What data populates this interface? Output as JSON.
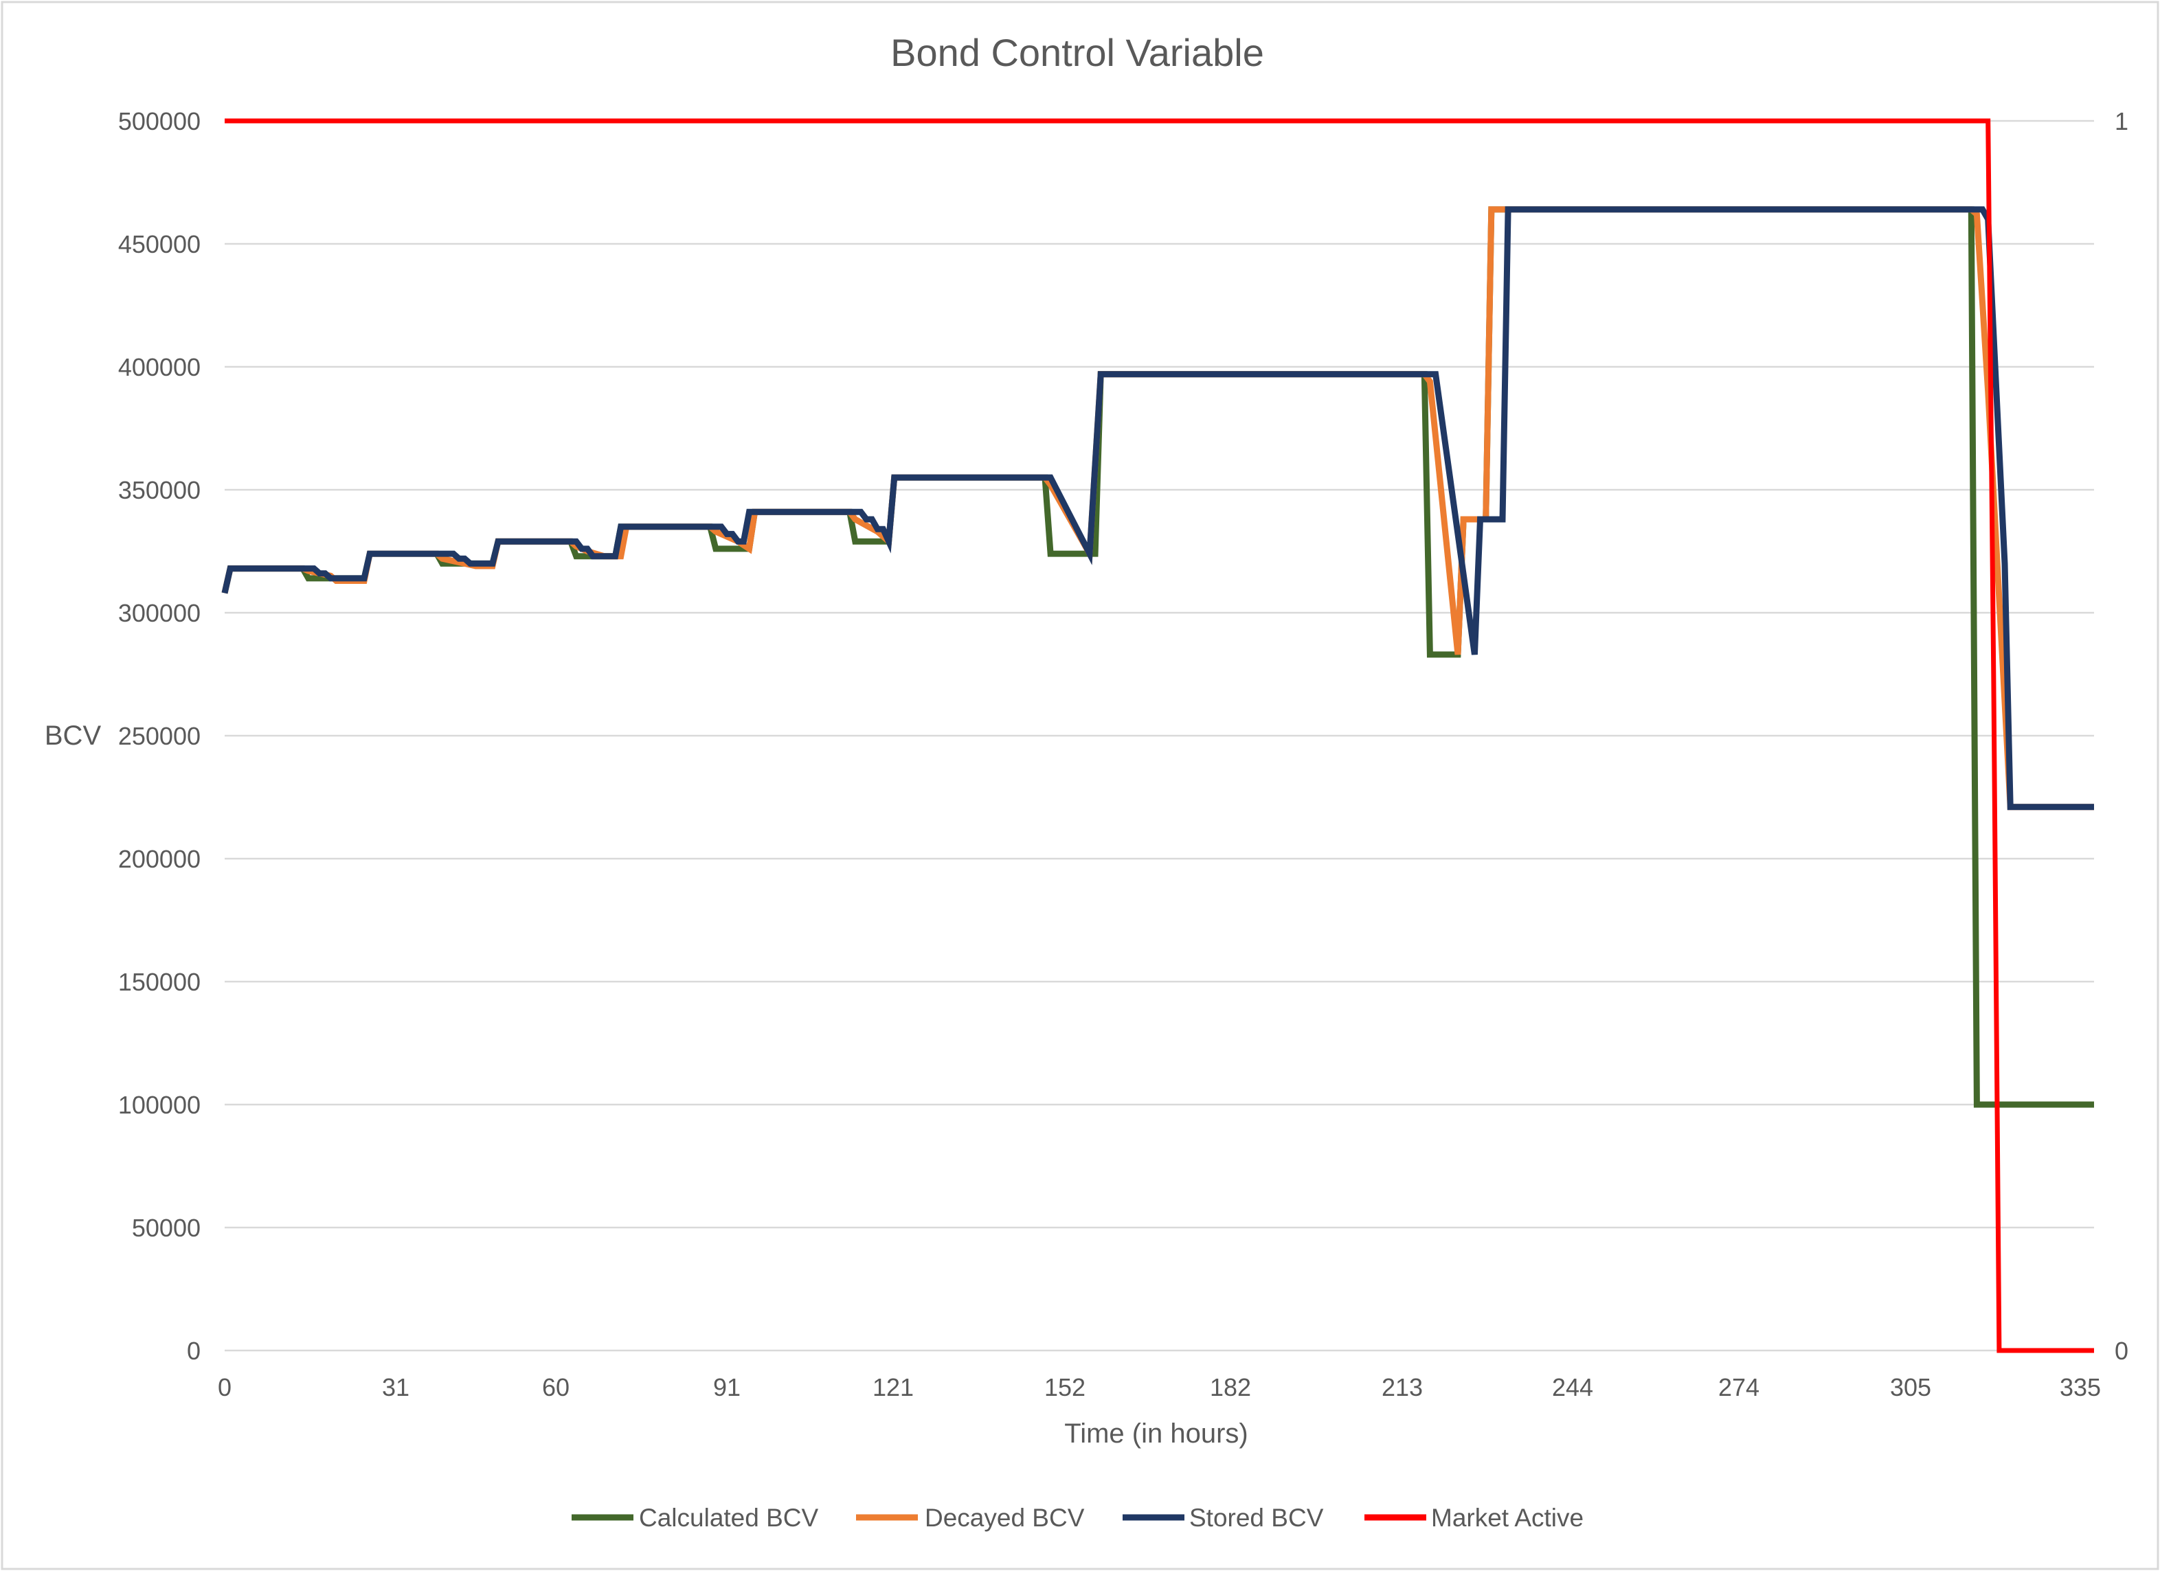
{
  "chart_data": {
    "type": "line",
    "title": "Bond Control Variable",
    "xlabel": "Time (in hours)",
    "ylabel": "BCV",
    "xlim": [
      0,
      335
    ],
    "ylim": [
      0,
      500000
    ],
    "y2lim": [
      0,
      1
    ],
    "x_ticks": [
      "0",
      "31",
      "60",
      "91",
      "121",
      "152",
      "182",
      "213",
      "244",
      "274",
      "305",
      "335"
    ],
    "y_ticks": [
      "0",
      "50000",
      "100000",
      "150000",
      "200000",
      "250000",
      "300000",
      "350000",
      "400000",
      "450000",
      "500000"
    ],
    "y2_ticks": [
      "0",
      "1"
    ],
    "grid": true,
    "legend_position": "bottom",
    "series": [
      {
        "name": "Calculated BCV",
        "color": "#43682b",
        "axis": "left",
        "x": [
          0,
          1,
          14,
          15,
          18,
          25,
          26,
          38,
          39,
          45,
          48,
          49,
          62,
          63,
          70,
          71,
          87,
          88,
          94,
          95,
          112,
          113,
          119,
          120,
          147,
          148,
          156,
          157,
          215,
          216,
          221,
          222,
          226,
          227,
          313,
          314,
          335
        ],
        "y": [
          308000,
          318000,
          318000,
          314000,
          314000,
          314000,
          324000,
          324000,
          320000,
          320000,
          320000,
          329000,
          329000,
          323000,
          323000,
          335000,
          335000,
          326000,
          326000,
          341000,
          341000,
          329000,
          329000,
          355000,
          355000,
          324000,
          324000,
          397000,
          397000,
          283000,
          283000,
          338000,
          338000,
          464000,
          464000,
          100000,
          100000
        ]
      },
      {
        "name": "Decayed BCV",
        "color": "#ed7d31",
        "axis": "left",
        "x": [
          0,
          1,
          14,
          15,
          19,
          20,
          25,
          26,
          38,
          39,
          43,
          45,
          48,
          49,
          62,
          63,
          65,
          68,
          71,
          72,
          87,
          88,
          92,
          94,
          95,
          112,
          113,
          117,
          119,
          120,
          147,
          148,
          155,
          157,
          215,
          216,
          221,
          222,
          226,
          227,
          313,
          314,
          316,
          320,
          335
        ],
        "y": [
          308000,
          318000,
          318000,
          317000,
          315000,
          313000,
          313000,
          324000,
          324000,
          322000,
          320000,
          319000,
          319000,
          329000,
          329000,
          327000,
          325000,
          323000,
          323000,
          335000,
          335000,
          333000,
          329000,
          326000,
          341000,
          341000,
          338000,
          333000,
          329000,
          355000,
          355000,
          352000,
          324000,
          397000,
          397000,
          394000,
          283000,
          338000,
          338000,
          464000,
          464000,
          462000,
          390000,
          221000,
          221000
        ]
      },
      {
        "name": "Stored BCV",
        "color": "#203864",
        "axis": "left",
        "x": [
          0,
          1,
          16,
          17,
          18,
          19,
          20,
          25,
          26,
          41,
          42,
          43,
          44,
          45,
          48,
          49,
          63,
          64,
          65,
          66,
          70,
          71,
          89,
          90,
          91,
          92,
          93,
          94,
          114,
          115,
          116,
          117,
          118,
          119,
          120,
          148,
          155,
          157,
          217,
          224,
          225,
          229,
          230,
          315,
          316,
          319,
          320,
          335
        ],
        "y": [
          308000,
          318000,
          318000,
          316000,
          316000,
          314000,
          314000,
          314000,
          324000,
          324000,
          322000,
          322000,
          320000,
          320000,
          320000,
          329000,
          329000,
          326000,
          326000,
          323000,
          323000,
          335000,
          335000,
          332000,
          332000,
          329000,
          329000,
          341000,
          341000,
          338000,
          338000,
          334000,
          334000,
          329000,
          355000,
          355000,
          324000,
          397000,
          397000,
          283000,
          338000,
          338000,
          464000,
          464000,
          460000,
          320000,
          221000,
          221000
        ]
      },
      {
        "name": "Market Active",
        "color": "#ff0000",
        "axis": "right",
        "x": [
          0,
          316,
          317,
          318,
          335
        ],
        "y": [
          1,
          1,
          0.55,
          0,
          0
        ]
      }
    ]
  }
}
